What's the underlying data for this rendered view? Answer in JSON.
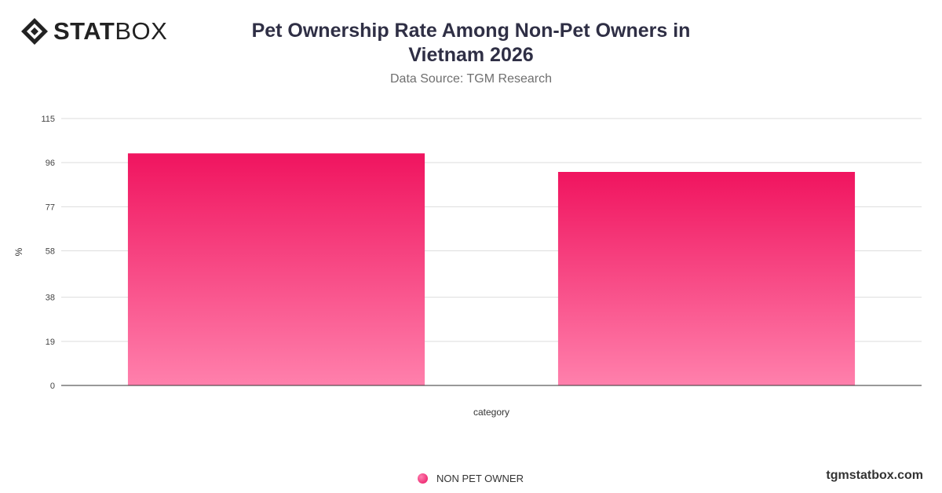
{
  "brand": {
    "name_bold": "STAT",
    "name_light": "BOX",
    "website": "tgmstatbox.com"
  },
  "header": {
    "title": "Pet Ownership Rate Among Non-Pet Owners in Vietnam 2026",
    "subtitle": "Data Source: TGM Research"
  },
  "colors": {
    "bar_top": "#f0145f",
    "bar_bottom": "#ff80ac",
    "grid": "#dddddd",
    "axis": "#333333"
  },
  "chart_data": {
    "type": "bar",
    "categories": [
      "",
      ""
    ],
    "series": [
      {
        "name": "NON PET OWNER",
        "values": [
          100,
          92
        ]
      }
    ],
    "xlabel": "category",
    "ylabel": "%",
    "ylim": [
      0,
      115
    ],
    "yticks": [
      "0",
      "19",
      "38",
      "58",
      "77",
      "96",
      "115"
    ],
    "grid": true,
    "legend": "bottom-center"
  }
}
